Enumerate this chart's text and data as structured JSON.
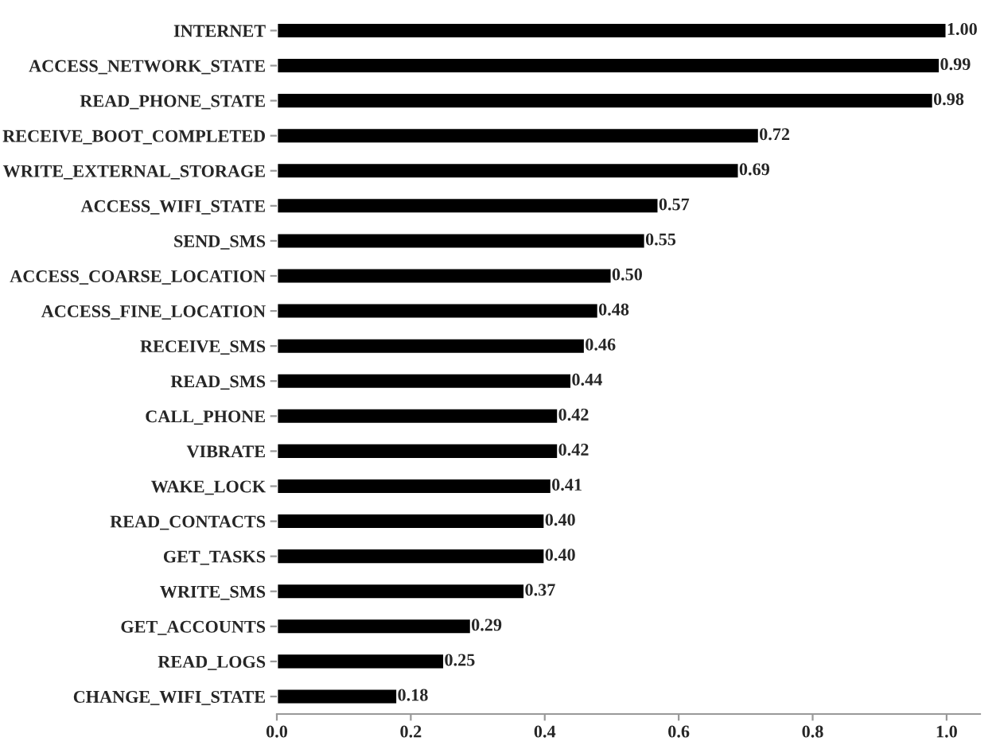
{
  "chart_data": {
    "type": "bar",
    "orientation": "horizontal",
    "categories": [
      "INTERNET",
      "ACCESS_NETWORK_STATE",
      "READ_PHONE_STATE",
      "RECEIVE_BOOT_COMPLETED",
      "WRITE_EXTERNAL_STORAGE",
      "ACCESS_WIFI_STATE",
      "SEND_SMS",
      "ACCESS_COARSE_LOCATION",
      "ACCESS_FINE_LOCATION",
      "RECEIVE_SMS",
      "READ_SMS",
      "CALL_PHONE",
      "VIBRATE",
      "WAKE_LOCK",
      "READ_CONTACTS",
      "GET_TASKS",
      "WRITE_SMS",
      "GET_ACCOUNTS",
      "READ_LOGS",
      "CHANGE_WIFI_STATE"
    ],
    "values": [
      1.0,
      0.99,
      0.98,
      0.72,
      0.69,
      0.57,
      0.55,
      0.5,
      0.48,
      0.46,
      0.44,
      0.42,
      0.42,
      0.41,
      0.4,
      0.4,
      0.37,
      0.29,
      0.25,
      0.18
    ],
    "value_labels": [
      "1.00",
      "0.99",
      "0.98",
      "0.72",
      "0.69",
      "0.57",
      "0.55",
      "0.50",
      "0.48",
      "0.46",
      "0.44",
      "0.42",
      "0.42",
      "0.41",
      "0.40",
      "0.40",
      "0.37",
      "0.29",
      "0.25",
      "0.18"
    ],
    "color": "#000000",
    "xlim": [
      0,
      1.05
    ],
    "xticks": [
      {
        "value": 0,
        "label": "0.0"
      },
      {
        "value": 0.2,
        "label": "0.2"
      },
      {
        "value": 0.4,
        "label": "0.4"
      },
      {
        "value": 0.6,
        "label": "0.6"
      },
      {
        "value": 0.8,
        "label": "0.8"
      },
      {
        "value": 1.0,
        "label": "1.0"
      }
    ],
    "grid": false,
    "legend": false
  }
}
